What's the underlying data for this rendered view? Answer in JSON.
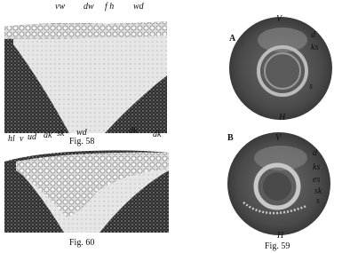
{
  "figures": [
    {
      "caption": "Fig. 58",
      "labels": [
        "vw",
        "dw",
        "f h",
        "wd"
      ]
    },
    {
      "caption": "Fig. 60",
      "labels": [
        "hl",
        "v",
        "ud",
        "ak",
        "sk",
        "wd",
        "dk",
        "dk"
      ]
    },
    {
      "caption": "Fig. 59",
      "panels": [
        {
          "letter": "A",
          "labels": [
            "V",
            "d",
            "ks",
            "s",
            "H"
          ]
        },
        {
          "letter": "B",
          "labels": [
            "V",
            "d",
            "ks",
            "es",
            "sk",
            "s",
            "H"
          ]
        }
      ]
    }
  ]
}
